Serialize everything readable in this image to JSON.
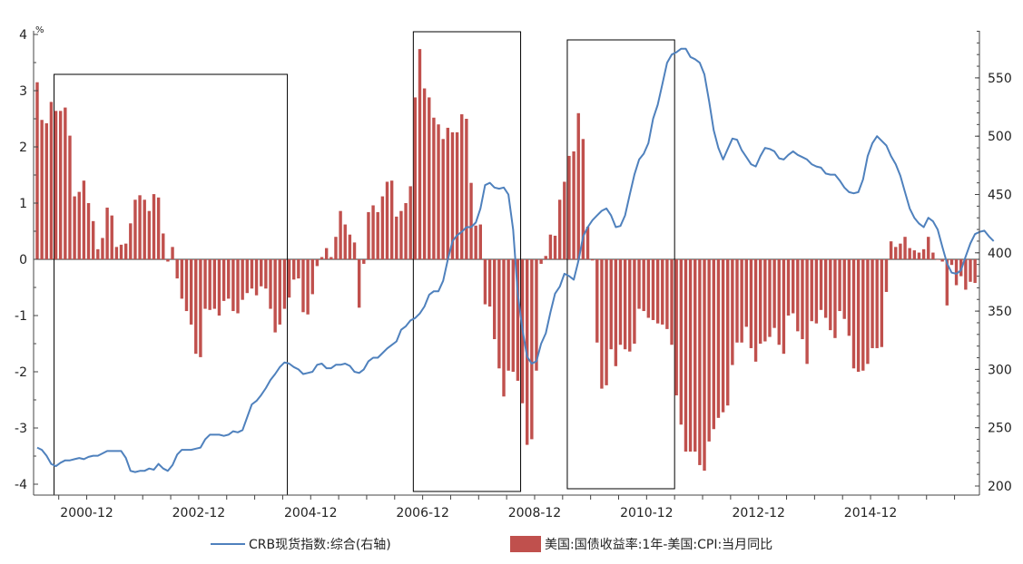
{
  "chart_data": {
    "type": "bar+line",
    "left_axis": {
      "unit": "%",
      "ylim": [
        -4.2,
        4.0
      ],
      "ticks": [
        "4",
        "3",
        "2",
        "1",
        "0",
        "-1",
        "-2",
        "-3",
        "-4"
      ]
    },
    "right_axis": {
      "ylim": [
        194,
        592
      ],
      "ticks": [
        "550",
        "500",
        "450",
        "400",
        "350",
        "300",
        "250",
        "200"
      ]
    },
    "x_tick_labels": [
      "2000-12",
      "2002-12",
      "2004-12",
      "2006-12",
      "2008-12",
      "2010-12",
      "2012-12",
      "2014-12"
    ],
    "highlight_boxes": [
      {
        "start": "2000-05",
        "end": "2004-07"
      },
      {
        "start": "2006-10",
        "end": "2008-09"
      },
      {
        "start": "2009-07",
        "end": "2011-06"
      }
    ],
    "series": [
      {
        "name": "美国:国债收益率:1年-美国:CPI:当月同比",
        "kind": "bar",
        "axis": "left",
        "color": "#c0504d",
        "start": "2000-01",
        "frequency": "monthly",
        "values": [
          3.15,
          2.48,
          2.42,
          2.8,
          2.64,
          2.64,
          2.7,
          2.2,
          1.12,
          1.2,
          1.4,
          1.0,
          0.68,
          0.18,
          0.38,
          0.92,
          0.78,
          0.22,
          0.26,
          0.28,
          0.64,
          1.06,
          1.14,
          1.06,
          0.86,
          1.16,
          1.1,
          0.46,
          -0.04,
          0.22,
          -0.34,
          -0.7,
          -0.92,
          -1.16,
          -1.68,
          -1.74,
          -0.88,
          -0.9,
          -0.88,
          -1.0,
          -0.74,
          -0.7,
          -0.92,
          -0.96,
          -0.72,
          -0.6,
          -0.52,
          -0.64,
          -0.48,
          -0.52,
          -0.88,
          -1.3,
          -1.16,
          -0.88,
          -0.68,
          -0.36,
          -0.34,
          -0.94,
          -0.98,
          -0.62,
          -0.12,
          0.04,
          0.2,
          0.04,
          0.4,
          0.86,
          0.62,
          0.44,
          0.3,
          -0.86,
          -0.08,
          0.84,
          0.96,
          0.84,
          1.12,
          1.38,
          1.4,
          0.76,
          0.86,
          1.0,
          1.3,
          2.88,
          3.74,
          3.04,
          2.88,
          2.52,
          2.4,
          2.14,
          2.34,
          2.26,
          2.26,
          2.58,
          2.5,
          1.36,
          0.6,
          0.62,
          -0.8,
          -0.84,
          -1.42,
          -1.94,
          -2.44,
          -1.98,
          -2.0,
          -2.16,
          -2.56,
          -3.3,
          -3.2,
          -1.98,
          -0.08,
          0.06,
          0.44,
          0.42,
          1.06,
          1.38,
          1.84,
          1.92,
          2.6,
          2.14,
          0.58,
          -0.02,
          -1.48,
          -2.3,
          -2.24,
          -1.6,
          -1.9,
          -1.52,
          -1.6,
          -1.64,
          -1.5,
          -0.88,
          -0.92,
          -1.04,
          -1.08,
          -1.14,
          -1.16,
          -1.24,
          -1.52,
          -2.42,
          -2.94,
          -3.42,
          -3.42,
          -3.42,
          -3.66,
          -3.76,
          -3.24,
          -3.02,
          -2.82,
          -2.72,
          -2.6,
          -1.88,
          -1.48,
          -1.48,
          -1.2,
          -1.58,
          -1.82,
          -1.5,
          -1.46,
          -1.38,
          -1.22,
          -1.52,
          -1.68,
          -1.0,
          -0.96,
          -1.28,
          -1.42,
          -1.86,
          -1.1,
          -1.14,
          -0.9,
          -1.04,
          -1.26,
          -1.4,
          -0.92,
          -1.06,
          -1.36,
          -1.94,
          -2.0,
          -1.98,
          -1.86,
          -1.58,
          -1.58,
          -1.56,
          -0.58,
          0.32,
          0.22,
          0.28,
          0.4,
          0.2,
          0.16,
          0.12,
          0.18,
          0.4,
          0.12,
          0.0,
          -0.04,
          -0.82,
          -0.1,
          -0.46,
          -0.3,
          -0.54,
          -0.4,
          -0.42
        ]
      },
      {
        "name": "CRB现货指数:综合(右轴)",
        "kind": "line",
        "axis": "right",
        "color": "#4f81bd",
        "start": "2000-01",
        "frequency": "monthly",
        "values": [
          233,
          231,
          226,
          219,
          217,
          220,
          222,
          222,
          223,
          224,
          223,
          225,
          226,
          226,
          228,
          230,
          230,
          230,
          230,
          224,
          213,
          212,
          213,
          213,
          215,
          214,
          219,
          215,
          213,
          218,
          227,
          231,
          231,
          231,
          232,
          233,
          240,
          244,
          244,
          244,
          243,
          244,
          247,
          246,
          248,
          259,
          270,
          273,
          278,
          284,
          291,
          296,
          302,
          306,
          305,
          302,
          300,
          296,
          297,
          298,
          304,
          305,
          301,
          301,
          304,
          304,
          305,
          303,
          298,
          297,
          300,
          307,
          310,
          310,
          314,
          318,
          321,
          324,
          334,
          337,
          342,
          344,
          348,
          354,
          364,
          367,
          367,
          376,
          394,
          410,
          415,
          418,
          422,
          422,
          426,
          438,
          458,
          460,
          456,
          455,
          456,
          450,
          420,
          365,
          334,
          311,
          305,
          307,
          322,
          331,
          349,
          365,
          371,
          382,
          380,
          377,
          393,
          414,
          422,
          428,
          432,
          436,
          438,
          432,
          422,
          423,
          432,
          450,
          467,
          480,
          485,
          494,
          515,
          527,
          545,
          563,
          570,
          572,
          575,
          575,
          568,
          566,
          563,
          553,
          530,
          505,
          490,
          480,
          489,
          498,
          497,
          488,
          482,
          476,
          474,
          483,
          490,
          489,
          487,
          481,
          480,
          484,
          487,
          484,
          482,
          480,
          476,
          474,
          473,
          468,
          467,
          467,
          462,
          456,
          452,
          451,
          452,
          463,
          483,
          494,
          500,
          496,
          492,
          483,
          476,
          466,
          452,
          438,
          430,
          425,
          422,
          430,
          427,
          420,
          405,
          391,
          383,
          382,
          385,
          397,
          408,
          416,
          418,
          419,
          414,
          410
        ]
      }
    ]
  }
}
